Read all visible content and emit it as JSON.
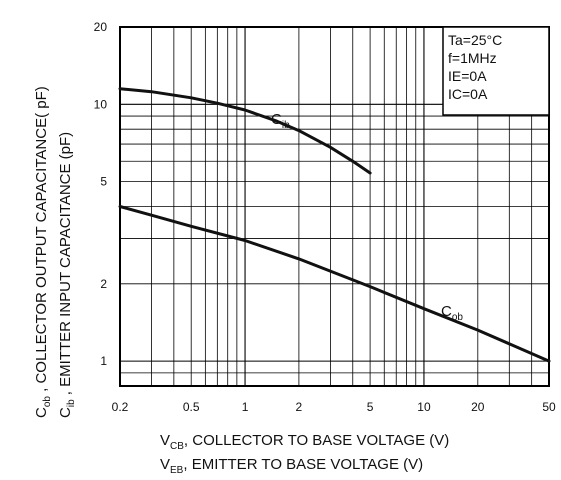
{
  "chart_data": {
    "type": "line",
    "x_scale": "log",
    "y_scale": "log",
    "xlim": [
      0.2,
      50
    ],
    "ylim": [
      0.8,
      20
    ],
    "grid": true,
    "x_ticks": [
      "0.2",
      "0.5",
      "1",
      "2",
      "5",
      "10",
      "20",
      "50"
    ],
    "y_ticks": [
      "1",
      "2",
      "5",
      "10",
      "20"
    ],
    "xlabel_line1": {
      "main": "V",
      "sub": "CB",
      "rest": ", COLLECTOR TO BASE VOLTAGE (V)"
    },
    "xlabel_line2": {
      "main": "V",
      "sub": "EB",
      "rest": ", EMITTER TO BASE VOLTAGE (V)"
    },
    "ylabel_line1": {
      "main": "C",
      "sub": "ob",
      "rest": " , COLLECTOR OUTPUT CAPACITANCE( pF)"
    },
    "ylabel_line2": {
      "main": "C",
      "sub": "ib",
      "rest": " , EMITTER INPUT CAPACITANCE (pF)"
    },
    "conditions": [
      "Ta=25°C",
      "f=1MHz",
      "IE=0A",
      "IC=0A"
    ],
    "series": [
      {
        "name": "Cib",
        "label_main": "C",
        "label_sub": "ib",
        "x": [
          0.2,
          0.3,
          0.5,
          0.7,
          1,
          1.5,
          2,
          3,
          4,
          5
        ],
        "y": [
          11.5,
          11.2,
          10.6,
          10.1,
          9.5,
          8.6,
          7.9,
          6.8,
          6.0,
          5.4
        ]
      },
      {
        "name": "Cob",
        "label_main": "C",
        "label_sub": "ob",
        "x": [
          0.2,
          0.3,
          0.5,
          1,
          2,
          5,
          10,
          20,
          50
        ],
        "y": [
          4.0,
          3.7,
          3.35,
          2.95,
          2.5,
          1.95,
          1.6,
          1.32,
          1.0
        ]
      }
    ]
  }
}
